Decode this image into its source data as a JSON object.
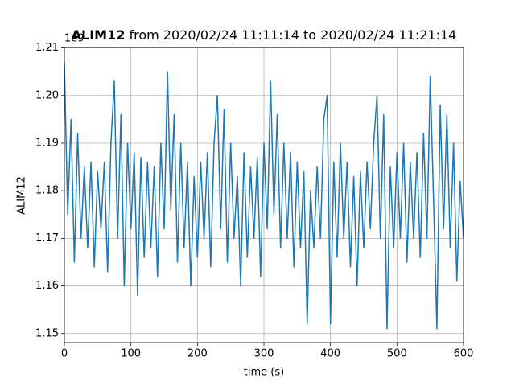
{
  "chart_data": {
    "type": "line",
    "title_bold": "ALIM12",
    "title": "from 2020/02/24 11:11:14 to 2020/02/24 11:21:14",
    "offset_text": "1e9",
    "xlabel": "time (s)",
    "ylabel": "ALIM12",
    "color": "#1f77b4",
    "grid": true,
    "xlim": [
      0,
      600
    ],
    "xticks": [
      0,
      100,
      200,
      300,
      400,
      500,
      600
    ],
    "ylim": [
      1.1481,
      1.2101
    ],
    "yticks": [
      1.15,
      1.16,
      1.17,
      1.18,
      1.19,
      {
        "value": 1.2,
        "label": "1.20"
      },
      1.21
    ],
    "x": [
      0,
      5,
      10,
      15,
      20,
      25,
      30,
      35,
      40,
      45,
      50,
      55,
      60,
      65,
      70,
      75,
      80,
      85,
      90,
      95,
      100,
      105,
      110,
      115,
      120,
      125,
      130,
      135,
      140,
      145,
      150,
      155,
      160,
      165,
      170,
      175,
      180,
      185,
      190,
      195,
      200,
      205,
      210,
      215,
      220,
      225,
      230,
      235,
      240,
      245,
      250,
      255,
      260,
      265,
      270,
      275,
      280,
      285,
      290,
      295,
      300,
      305,
      310,
      315,
      320,
      325,
      330,
      335,
      340,
      345,
      350,
      355,
      360,
      365,
      370,
      375,
      380,
      385,
      390,
      395,
      400,
      405,
      410,
      415,
      420,
      425,
      430,
      435,
      440,
      445,
      450,
      455,
      460,
      465,
      470,
      475,
      480,
      485,
      490,
      495,
      500,
      505,
      510,
      515,
      520,
      525,
      530,
      535,
      540,
      545,
      550,
      555,
      560,
      565,
      570,
      575,
      580,
      585,
      590,
      595,
      600
    ],
    "values": [
      1.207,
      1.175,
      1.195,
      1.165,
      1.192,
      1.17,
      1.185,
      1.168,
      1.186,
      1.164,
      1.184,
      1.172,
      1.186,
      1.163,
      1.19,
      1.203,
      1.17,
      1.196,
      1.16,
      1.19,
      1.172,
      1.188,
      1.158,
      1.187,
      1.166,
      1.186,
      1.168,
      1.185,
      1.162,
      1.19,
      1.172,
      1.205,
      1.176,
      1.196,
      1.165,
      1.19,
      1.168,
      1.186,
      1.16,
      1.183,
      1.166,
      1.186,
      1.17,
      1.188,
      1.164,
      1.19,
      1.2,
      1.172,
      1.197,
      1.165,
      1.19,
      1.17,
      1.183,
      1.16,
      1.188,
      1.166,
      1.185,
      1.17,
      1.187,
      1.162,
      1.19,
      1.172,
      1.203,
      1.175,
      1.196,
      1.168,
      1.19,
      1.17,
      1.188,
      1.164,
      1.186,
      1.168,
      1.184,
      1.152,
      1.18,
      1.168,
      1.185,
      1.17,
      1.195,
      1.2,
      1.152,
      1.186,
      1.166,
      1.19,
      1.17,
      1.186,
      1.164,
      1.183,
      1.16,
      1.184,
      1.168,
      1.186,
      1.172,
      1.19,
      1.2,
      1.17,
      1.196,
      1.151,
      1.185,
      1.168,
      1.188,
      1.17,
      1.19,
      1.165,
      1.186,
      1.17,
      1.188,
      1.166,
      1.192,
      1.17,
      1.204,
      1.178,
      1.151,
      1.198,
      1.172,
      1.196,
      1.168,
      1.19,
      1.161,
      1.182,
      1.17
    ]
  }
}
